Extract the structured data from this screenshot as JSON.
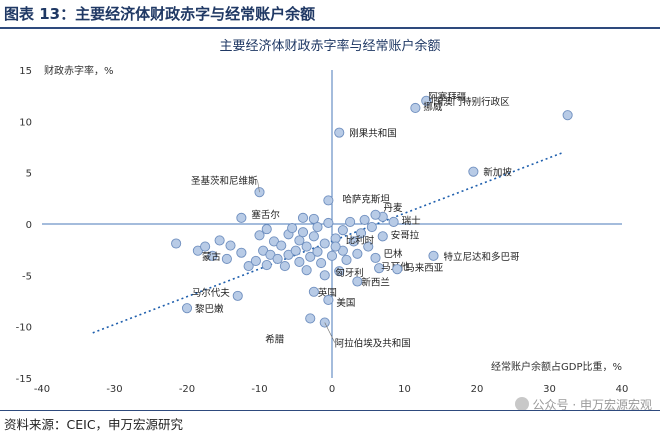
{
  "header": {
    "title": "图表 13：主要经济体财政赤字与经常账户余额"
  },
  "footer": {
    "source": "资料来源：CEIC，申万宏源研究"
  },
  "watermark": {
    "text": "公众号 · 申万宏源宏观"
  },
  "colors": {
    "accent": "#2e4a7d",
    "axis": "#4a7ab8",
    "point_fill": "#b8cbe6",
    "point_stroke": "#6f8fbf",
    "trend": "#1f5fad"
  },
  "chart_data": {
    "type": "scatter",
    "title": "主要经济体财政赤字率与经常账户余额",
    "xlabel": "经常账户余额占GDP比重，%",
    "ylabel": "财政赤字率，%",
    "xlim": [
      -40,
      40
    ],
    "ylim": [
      -15,
      15
    ],
    "x_ticks": [
      -40,
      -30,
      -20,
      -10,
      0,
      10,
      20,
      30,
      40
    ],
    "y_ticks": [
      -15,
      -10,
      -5,
      0,
      5,
      10,
      15
    ],
    "x_tick_labels": [
      "-40",
      "-30",
      "-20",
      "-10",
      "0",
      "10",
      "20",
      "30",
      "40"
    ],
    "y_tick_labels": [
      "-15",
      "-10",
      "-5",
      "0",
      "5",
      "10",
      "15"
    ],
    "grid": false,
    "trendline": {
      "x": [
        -33,
        32
      ],
      "y": [
        -10.6,
        7.0
      ]
    },
    "labeled_points": [
      {
        "label": "中国澳门特别行政区",
        "x": 32.5,
        "y": 10.6
      },
      {
        "label": "阿塞拜疆",
        "x": 13.0,
        "y": 12.0
      },
      {
        "label": "挪威",
        "x": 11.5,
        "y": 11.3
      },
      {
        "label": "刚果共和国",
        "x": 1.0,
        "y": 8.9
      },
      {
        "label": "新加坡",
        "x": 19.5,
        "y": 5.1
      },
      {
        "label": "圣基茨和尼维斯",
        "x": -10.0,
        "y": 3.1
      },
      {
        "label": "哈萨克斯坦",
        "x": -0.5,
        "y": 2.3
      },
      {
        "label": "丹麦",
        "x": 6.0,
        "y": 0.9
      },
      {
        "label": "瑞士",
        "x": 8.5,
        "y": 0.2
      },
      {
        "label": "塞舌尔",
        "x": -12.5,
        "y": 0.6
      },
      {
        "label": "安哥拉",
        "x": 7.0,
        "y": -1.2
      },
      {
        "label": "蒙古",
        "x": -14.5,
        "y": -3.4
      },
      {
        "label": "比利时",
        "x": 0.5,
        "y": -2.2
      },
      {
        "label": "巴林",
        "x": 6.0,
        "y": -3.3
      },
      {
        "label": "特立尼达和多巴哥",
        "x": 14.0,
        "y": -3.1
      },
      {
        "label": "马耳他",
        "x": 6.5,
        "y": -4.3
      },
      {
        "label": "马来西亚",
        "x": 9.0,
        "y": -4.4
      },
      {
        "label": "匈牙利",
        "x": 1.0,
        "y": -4.6
      },
      {
        "label": "新西兰",
        "x": 3.5,
        "y": -5.6
      },
      {
        "label": "英国",
        "x": -2.5,
        "y": -6.6
      },
      {
        "label": "美国",
        "x": -0.5,
        "y": -7.4
      },
      {
        "label": "马尔代夫",
        "x": -13.0,
        "y": -7.0
      },
      {
        "label": "黎巴嫩",
        "x": -20.0,
        "y": -8.2
      },
      {
        "label": "希腊",
        "x": -3.0,
        "y": -9.2
      },
      {
        "label": "阿拉伯埃及共和国",
        "x": -1.0,
        "y": -9.6
      }
    ],
    "unlabeled_points": [
      {
        "x": -21.5,
        "y": -1.9
      },
      {
        "x": -18.5,
        "y": -2.6
      },
      {
        "x": -17.5,
        "y": -2.2
      },
      {
        "x": -16.5,
        "y": -3.1
      },
      {
        "x": -15.5,
        "y": -1.6
      },
      {
        "x": -14.0,
        "y": -2.1
      },
      {
        "x": -12.5,
        "y": -2.8
      },
      {
        "x": -11.5,
        "y": -4.1
      },
      {
        "x": -10.5,
        "y": -3.6
      },
      {
        "x": -10.0,
        "y": -1.1
      },
      {
        "x": -9.5,
        "y": -2.6
      },
      {
        "x": -9.0,
        "y": -4.0
      },
      {
        "x": -8.5,
        "y": -3.0
      },
      {
        "x": -8.0,
        "y": -1.7
      },
      {
        "x": -7.5,
        "y": -3.4
      },
      {
        "x": -7.0,
        "y": -2.1
      },
      {
        "x": -6.5,
        "y": -4.1
      },
      {
        "x": -6.0,
        "y": -1.0
      },
      {
        "x": -6.0,
        "y": -3.0
      },
      {
        "x": -5.5,
        "y": -0.4
      },
      {
        "x": -5.0,
        "y": -2.6
      },
      {
        "x": -4.5,
        "y": -3.7
      },
      {
        "x": -4.5,
        "y": -1.6
      },
      {
        "x": -4.0,
        "y": -0.8
      },
      {
        "x": -3.5,
        "y": -2.2
      },
      {
        "x": -3.5,
        "y": -4.5
      },
      {
        "x": -3.0,
        "y": -3.2
      },
      {
        "x": -2.5,
        "y": -1.2
      },
      {
        "x": -2.0,
        "y": -2.7
      },
      {
        "x": -2.0,
        "y": -0.3
      },
      {
        "x": -1.5,
        "y": -3.8
      },
      {
        "x": -1.0,
        "y": -1.9
      },
      {
        "x": -1.0,
        "y": -5.0
      },
      {
        "x": -0.5,
        "y": 0.1
      },
      {
        "x": 0.0,
        "y": -3.1
      },
      {
        "x": 0.5,
        "y": -1.4
      },
      {
        "x": 1.5,
        "y": -2.6
      },
      {
        "x": 1.5,
        "y": -0.6
      },
      {
        "x": 2.0,
        "y": -3.5
      },
      {
        "x": 2.5,
        "y": 0.2
      },
      {
        "x": 3.0,
        "y": -1.7
      },
      {
        "x": 3.5,
        "y": -2.9
      },
      {
        "x": 4.0,
        "y": -0.9
      },
      {
        "x": 4.5,
        "y": 0.4
      },
      {
        "x": 5.0,
        "y": -2.2
      },
      {
        "x": 5.5,
        "y": -0.3
      },
      {
        "x": 7.0,
        "y": 0.7
      },
      {
        "x": -9.0,
        "y": -0.5
      },
      {
        "x": -4.0,
        "y": 0.6
      },
      {
        "x": -2.5,
        "y": 0.5
      }
    ]
  }
}
